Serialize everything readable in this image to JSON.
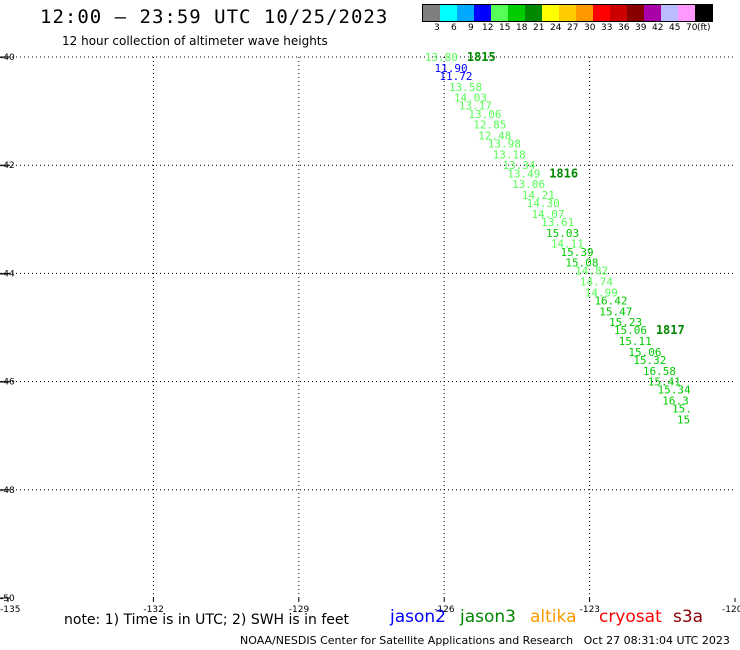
{
  "header": {
    "title": "12:00 – 23:59 UTC 10/25/2023",
    "subtitle": "12 hour collection of altimeter wave heights"
  },
  "legend": {
    "colors": [
      "#7f7f7f",
      "#00ffff",
      "#00a9ff",
      "#0000ff",
      "#55ff55",
      "#00cc00",
      "#008800",
      "#ffff00",
      "#ffcc00",
      "#ff9900",
      "#ff0000",
      "#cc0000",
      "#880000",
      "#aa00aa",
      "#bbbbff",
      "#ff99ff",
      "#000000"
    ],
    "labels": [
      "3",
      "6",
      "9",
      "12",
      "15",
      "18",
      "21",
      "24",
      "27",
      "30",
      "33",
      "36",
      "39",
      "42",
      "45",
      "70",
      "(ft)"
    ]
  },
  "map": {
    "lat_labels": [
      "-40",
      "-42",
      "-44",
      "-46",
      "-48",
      "-50"
    ],
    "lon_labels": [
      "-135",
      "-132",
      "-129",
      "-126",
      "-123",
      "-120"
    ]
  },
  "chart_data": {
    "type": "scatter",
    "passes": [
      {
        "time": "1815",
        "points": [
          {
            "lon": -126.4,
            "lat": -40.0,
            "swh": "13.80",
            "color": "#55ff55"
          },
          {
            "lon": -126.2,
            "lat": -40.2,
            "swh": "11.90",
            "color": "#0000ff"
          },
          {
            "lon": -126.1,
            "lat": -40.35,
            "swh": "11.72",
            "color": "#0000ff"
          },
          {
            "lon": -125.9,
            "lat": -40.55,
            "swh": "13.58",
            "color": "#55ff55"
          },
          {
            "lon": -125.8,
            "lat": -40.75,
            "swh": "14.03",
            "color": "#55ff55"
          },
          {
            "lon": -125.7,
            "lat": -40.9,
            "swh": "13.17",
            "color": "#55ff55"
          },
          {
            "lon": -125.5,
            "lat": -41.05,
            "swh": "13.06",
            "color": "#55ff55"
          },
          {
            "lon": -125.4,
            "lat": -41.25,
            "swh": "12.85",
            "color": "#55ff55"
          },
          {
            "lon": -125.3,
            "lat": -41.45,
            "swh": "12.48",
            "color": "#55ff55"
          },
          {
            "lon": -125.1,
            "lat": -41.6,
            "swh": "13.98",
            "color": "#55ff55"
          },
          {
            "lon": -125.0,
            "lat": -41.8,
            "swh": "13.18",
            "color": "#55ff55"
          },
          {
            "lon": -124.8,
            "lat": -42.0,
            "swh": "13.34",
            "color": "#55ff55"
          }
        ]
      },
      {
        "time": "1816",
        "points": [
          {
            "lon": -124.7,
            "lat": -42.15,
            "swh": "13.49",
            "color": "#55ff55"
          },
          {
            "lon": -124.6,
            "lat": -42.35,
            "swh": "13.06",
            "color": "#55ff55"
          },
          {
            "lon": -124.4,
            "lat": -42.55,
            "swh": "14.21",
            "color": "#55ff55"
          },
          {
            "lon": -124.3,
            "lat": -42.7,
            "swh": "14.30",
            "color": "#55ff55"
          },
          {
            "lon": -124.2,
            "lat": -42.9,
            "swh": "14.07",
            "color": "#55ff55"
          },
          {
            "lon": -124.0,
            "lat": -43.05,
            "swh": "13.61",
            "color": "#55ff55"
          },
          {
            "lon": -123.9,
            "lat": -43.25,
            "swh": "15.03",
            "color": "#00cc00"
          },
          {
            "lon": -123.8,
            "lat": -43.45,
            "swh": "14.11",
            "color": "#55ff55"
          },
          {
            "lon": -123.6,
            "lat": -43.6,
            "swh": "15.39",
            "color": "#00cc00"
          },
          {
            "lon": -123.5,
            "lat": -43.8,
            "swh": "15.08",
            "color": "#00cc00"
          },
          {
            "lon": -123.3,
            "lat": -43.95,
            "swh": "14.82",
            "color": "#55ff55"
          },
          {
            "lon": -123.2,
            "lat": -44.15,
            "swh": "14.74",
            "color": "#55ff55"
          },
          {
            "lon": -123.1,
            "lat": -44.35,
            "swh": "14.99",
            "color": "#55ff55"
          },
          {
            "lon": -122.9,
            "lat": -44.5,
            "swh": "16.42",
            "color": "#00cc00"
          },
          {
            "lon": -122.8,
            "lat": -44.7,
            "swh": "15.47",
            "color": "#00cc00"
          },
          {
            "lon": -122.6,
            "lat": -44.9,
            "swh": "15.23",
            "color": "#00cc00"
          }
        ]
      },
      {
        "time": "1817",
        "points": [
          {
            "lon": -122.5,
            "lat": -45.05,
            "swh": "15.06",
            "color": "#00cc00"
          },
          {
            "lon": -122.4,
            "lat": -45.25,
            "swh": "15.11",
            "color": "#00cc00"
          },
          {
            "lon": -122.2,
            "lat": -45.45,
            "swh": "15.06",
            "color": "#00cc00"
          },
          {
            "lon": -122.1,
            "lat": -45.6,
            "swh": "15.32",
            "color": "#00cc00"
          },
          {
            "lon": -121.9,
            "lat": -45.8,
            "swh": "16.58",
            "color": "#00cc00"
          },
          {
            "lon": -121.8,
            "lat": -46.0,
            "swh": "15.41",
            "color": "#00cc00"
          },
          {
            "lon": -121.6,
            "lat": -46.15,
            "swh": "15.34",
            "color": "#00cc00"
          },
          {
            "lon": -121.5,
            "lat": -46.35,
            "swh": "16.3",
            "color": "#00cc00"
          },
          {
            "lon": -121.3,
            "lat": -46.5,
            "swh": "15.",
            "color": "#00cc00"
          },
          {
            "lon": -121.2,
            "lat": -46.7,
            "swh": "15",
            "color": "#00cc00"
          }
        ]
      }
    ]
  },
  "footer": {
    "note": "note:  1) Time is in UTC;  2) SWH is in feet",
    "satellites": [
      {
        "name": "jason2",
        "color": "#0000ff"
      },
      {
        "name": "jason3",
        "color": "#008800"
      },
      {
        "name": "altika",
        "color": "#ff9900"
      },
      {
        "name": "cryosat",
        "color": "#ff0000"
      },
      {
        "name": "s3a",
        "color": "#880000"
      }
    ],
    "credit": "NOAA/NESDIS Center for Satellite Applications and Research",
    "timestamp": "Oct 27 08:31:04 UTC 2023"
  }
}
